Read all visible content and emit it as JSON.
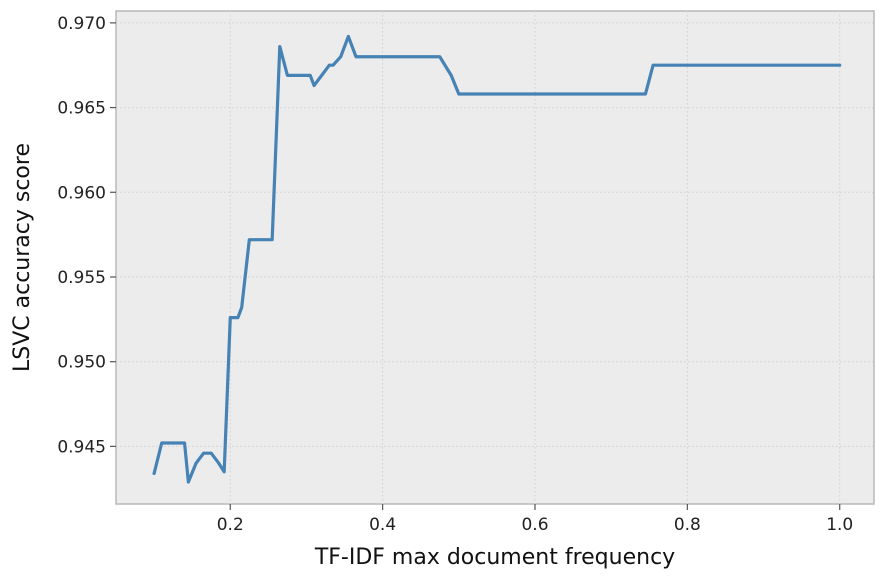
{
  "chart_data": {
    "type": "line",
    "title": "",
    "xlabel": "TF-IDF max document frequency",
    "ylabel": "LSVC accuracy score",
    "xlim": [
      0.05,
      1.045
    ],
    "ylim": [
      0.9416,
      0.9707
    ],
    "xticks": [
      0.2,
      0.4,
      0.6,
      0.8,
      1.0
    ],
    "xtick_labels": [
      "0.2",
      "0.4",
      "0.6",
      "0.8",
      "1.0"
    ],
    "yticks": [
      0.945,
      0.95,
      0.955,
      0.96,
      0.965,
      0.97
    ],
    "ytick_labels": [
      "0.945",
      "0.950",
      "0.955",
      "0.960",
      "0.965",
      "0.970"
    ],
    "grid": true,
    "colors": {
      "line": "#4682b4",
      "plot_bg": "#ececec",
      "frame": "#b8b8b8",
      "grid": "#cfcfcf"
    },
    "series": [
      {
        "x": [
          0.1,
          0.11,
          0.12,
          0.13,
          0.14,
          0.145,
          0.155,
          0.165,
          0.175,
          0.185,
          0.192,
          0.2,
          0.21,
          0.215,
          0.225,
          0.235,
          0.245,
          0.255,
          0.265,
          0.275,
          0.285,
          0.295,
          0.305,
          0.31,
          0.32,
          0.33,
          0.335,
          0.345,
          0.355,
          0.365,
          0.375,
          0.385,
          0.395,
          0.4,
          0.42,
          0.44,
          0.46,
          0.475,
          0.49,
          0.5,
          0.52,
          0.55,
          0.6,
          0.65,
          0.7,
          0.745,
          0.755,
          0.78,
          0.8,
          0.85,
          0.9,
          0.95,
          1.0
        ],
        "y": [
          0.9434,
          0.9452,
          0.9452,
          0.9452,
          0.9452,
          0.9429,
          0.944,
          0.9446,
          0.9446,
          0.944,
          0.9435,
          0.9526,
          0.9526,
          0.9532,
          0.9572,
          0.9572,
          0.9572,
          0.9572,
          0.9686,
          0.9669,
          0.9669,
          0.9669,
          0.9669,
          0.9663,
          0.9669,
          0.9675,
          0.9675,
          0.968,
          0.9692,
          0.968,
          0.968,
          0.968,
          0.968,
          0.968,
          0.968,
          0.968,
          0.968,
          0.968,
          0.9669,
          0.9658,
          0.9658,
          0.9658,
          0.9658,
          0.9658,
          0.9658,
          0.9658,
          0.9675,
          0.9675,
          0.9675,
          0.9675,
          0.9675,
          0.9675,
          0.9675
        ]
      }
    ]
  }
}
